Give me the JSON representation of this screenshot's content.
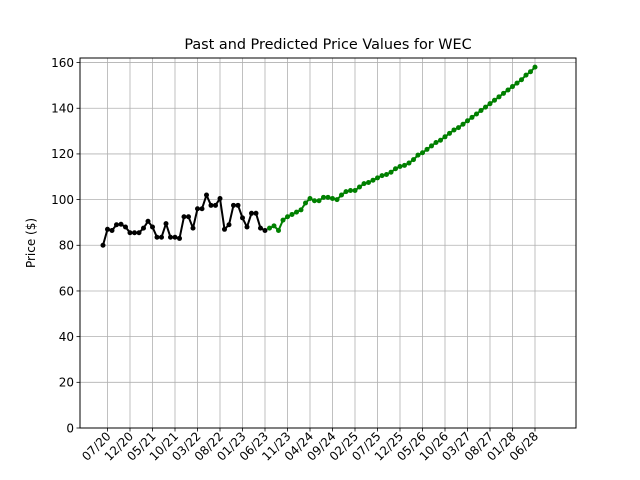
{
  "chart_data": {
    "type": "line",
    "title": "Past and Predicted Price Values for WEC",
    "xlabel": "",
    "ylabel": "Price ($)",
    "ylim": [
      0,
      162
    ],
    "yticks": [
      0,
      20,
      40,
      60,
      80,
      100,
      120,
      140,
      160
    ],
    "x_tick_labels": [
      "07/20",
      "12/20",
      "05/21",
      "10/21",
      "03/22",
      "08/22",
      "01/23",
      "06/23",
      "11/23",
      "04/24",
      "09/24",
      "02/25",
      "07/25",
      "12/25",
      "05/26",
      "10/26",
      "03/27",
      "08/27",
      "01/28",
      "06/28"
    ],
    "grid": true,
    "series": [
      {
        "color": "#000000",
        "points": [
          [
            "2020-06",
            80.0
          ],
          [
            "2020-07",
            87.0
          ],
          [
            "2020-08",
            86.5
          ],
          [
            "2020-09",
            89.0
          ],
          [
            "2020-10",
            89.2
          ],
          [
            "2020-11",
            88.0
          ],
          [
            "2020-12",
            85.5
          ],
          [
            "2021-01",
            85.5
          ],
          [
            "2021-02",
            85.5
          ],
          [
            "2021-03",
            87.5
          ],
          [
            "2021-04",
            90.5
          ],
          [
            "2021-05",
            88.0
          ],
          [
            "2021-06",
            83.5
          ],
          [
            "2021-07",
            83.5
          ],
          [
            "2021-08",
            89.5
          ],
          [
            "2021-09",
            83.5
          ],
          [
            "2021-10",
            83.5
          ],
          [
            "2021-11",
            83.0
          ],
          [
            "2021-12",
            92.5
          ],
          [
            "2022-01",
            92.5
          ],
          [
            "2022-02",
            87.5
          ],
          [
            "2022-03",
            96.0
          ],
          [
            "2022-04",
            96.0
          ],
          [
            "2022-05",
            102.0
          ],
          [
            "2022-06",
            97.5
          ],
          [
            "2022-07",
            97.5
          ],
          [
            "2022-08",
            100.5
          ],
          [
            "2022-09",
            87.0
          ],
          [
            "2022-10",
            89.0
          ],
          [
            "2022-11",
            97.5
          ],
          [
            "2022-12",
            97.5
          ],
          [
            "2023-01",
            92.0
          ],
          [
            "2023-02",
            88.0
          ],
          [
            "2023-03",
            94.0
          ],
          [
            "2023-04",
            94.0
          ],
          [
            "2023-05",
            87.5
          ],
          [
            "2023-06",
            86.5
          ]
        ]
      },
      {
        "color": "#008000",
        "points": [
          [
            "2023-07",
            87.5
          ],
          [
            "2023-08",
            88.5
          ],
          [
            "2023-09",
            86.5
          ],
          [
            "2023-10",
            91.0
          ],
          [
            "2023-11",
            92.5
          ],
          [
            "2023-12",
            93.5
          ],
          [
            "2024-01",
            94.5
          ],
          [
            "2024-02",
            95.5
          ],
          [
            "2024-03",
            98.5
          ],
          [
            "2024-04",
            100.5
          ],
          [
            "2024-05",
            99.5
          ],
          [
            "2024-06",
            99.5
          ],
          [
            "2024-07",
            101.0
          ],
          [
            "2024-08",
            101.0
          ],
          [
            "2024-09",
            100.5
          ],
          [
            "2024-10",
            100.0
          ],
          [
            "2024-11",
            102.0
          ],
          [
            "2024-12",
            103.5
          ],
          [
            "2025-01",
            104.0
          ],
          [
            "2025-02",
            104.0
          ],
          [
            "2025-03",
            105.5
          ],
          [
            "2025-04",
            107.0
          ],
          [
            "2025-05",
            107.5
          ],
          [
            "2025-06",
            108.5
          ],
          [
            "2025-07",
            109.5
          ],
          [
            "2025-08",
            110.5
          ],
          [
            "2025-09",
            111.0
          ],
          [
            "2025-10",
            112.0
          ],
          [
            "2025-11",
            113.5
          ],
          [
            "2025-12",
            114.5
          ],
          [
            "2026-01",
            115.0
          ],
          [
            "2026-02",
            116.0
          ],
          [
            "2026-03",
            117.5
          ],
          [
            "2026-04",
            119.5
          ],
          [
            "2026-05",
            120.5
          ],
          [
            "2026-06",
            122.0
          ],
          [
            "2026-07",
            123.5
          ],
          [
            "2026-08",
            125.0
          ],
          [
            "2026-09",
            126.0
          ],
          [
            "2026-10",
            127.5
          ],
          [
            "2026-11",
            129.0
          ],
          [
            "2026-12",
            130.5
          ],
          [
            "2027-01",
            131.5
          ],
          [
            "2027-02",
            133.0
          ],
          [
            "2027-03",
            134.5
          ],
          [
            "2027-04",
            136.0
          ],
          [
            "2027-05",
            137.5
          ],
          [
            "2027-06",
            139.0
          ],
          [
            "2027-07",
            140.5
          ],
          [
            "2027-08",
            142.0
          ],
          [
            "2027-09",
            143.5
          ],
          [
            "2027-10",
            145.0
          ],
          [
            "2027-11",
            146.5
          ],
          [
            "2027-12",
            148.0
          ],
          [
            "2028-01",
            149.5
          ],
          [
            "2028-02",
            151.0
          ],
          [
            "2028-03",
            152.5
          ],
          [
            "2028-04",
            154.5
          ],
          [
            "2028-05",
            156.0
          ],
          [
            "2028-06",
            158.0
          ]
        ]
      }
    ]
  }
}
